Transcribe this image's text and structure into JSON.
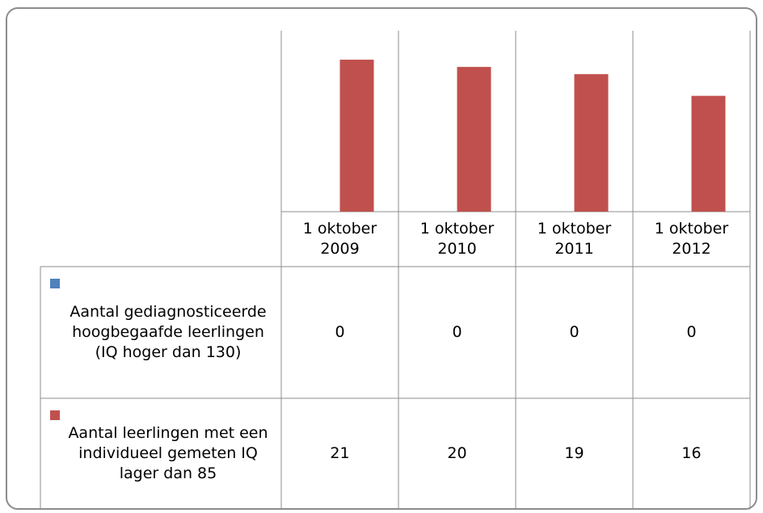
{
  "chart_data": {
    "type": "bar",
    "categories": [
      "1 oktober 2009",
      "1 oktober 2010",
      "1 oktober 2011",
      "1 oktober 2012"
    ],
    "series": [
      {
        "name": "Aantal gediagnosticeerde hoogbegaafde leerlingen (IQ hoger dan 130)",
        "color": "#4f81bd",
        "values": [
          0,
          0,
          0,
          0
        ]
      },
      {
        "name": "Aantal leerlingen met een individueel gemeten IQ lager dan 85",
        "color": "#c0504d",
        "values": [
          21,
          20,
          19,
          16
        ]
      }
    ],
    "ylim": [
      0,
      25
    ]
  }
}
